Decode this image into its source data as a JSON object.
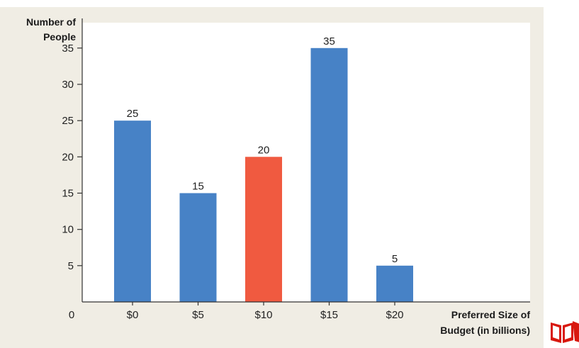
{
  "chart_data": {
    "type": "bar",
    "title": "",
    "ylabel": [
      "Number of",
      "People"
    ],
    "xlabel": [
      "Preferred Size of",
      "Budget (in billions)"
    ],
    "categories": [
      "$0",
      "$5",
      "$10",
      "$15",
      "$20"
    ],
    "values": [
      25,
      15,
      20,
      35,
      5
    ],
    "data_labels": [
      "25",
      "15",
      "20",
      "35",
      "5"
    ],
    "highlight_index": 2,
    "ylim": [
      0,
      38.5
    ],
    "yticks": [
      5,
      10,
      15,
      20,
      25,
      30,
      35
    ],
    "ytick_labels": [
      "5",
      "10",
      "15",
      "20",
      "25",
      "30",
      "35"
    ],
    "origin_label": "0",
    "grid": false,
    "colors": {
      "bar": "#4782c6",
      "highlight": "#f05a40",
      "plot_background": "#f0ede4",
      "axis": "#333333"
    }
  },
  "decoration": {
    "corner_icon": "open-book-icon",
    "corner_icon_color": "#d8180f"
  }
}
